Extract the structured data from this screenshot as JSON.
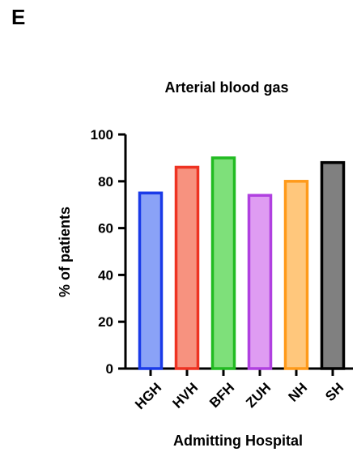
{
  "panel_label": "E",
  "chart_data": {
    "type": "bar",
    "title": "Arterial blood gas",
    "xlabel": "Admitting Hospital",
    "ylabel": "% of patients",
    "ylim": [
      0,
      100
    ],
    "yticks": [
      0,
      20,
      40,
      60,
      80,
      100
    ],
    "categories": [
      "HGH",
      "HVH",
      "BFH",
      "ZUH",
      "NH",
      "SH"
    ],
    "values": [
      75,
      86,
      90,
      74,
      80,
      88
    ],
    "fill_colors": [
      "#8aa2f7",
      "#f7927f",
      "#7ee07a",
      "#df9cf2",
      "#ffc77c",
      "#808080"
    ],
    "edge_colors": [
      "#1a3ae8",
      "#ee3322",
      "#22bb22",
      "#b040e0",
      "#ff9a1a",
      "#000000"
    ],
    "grid": false,
    "legend": "none"
  }
}
